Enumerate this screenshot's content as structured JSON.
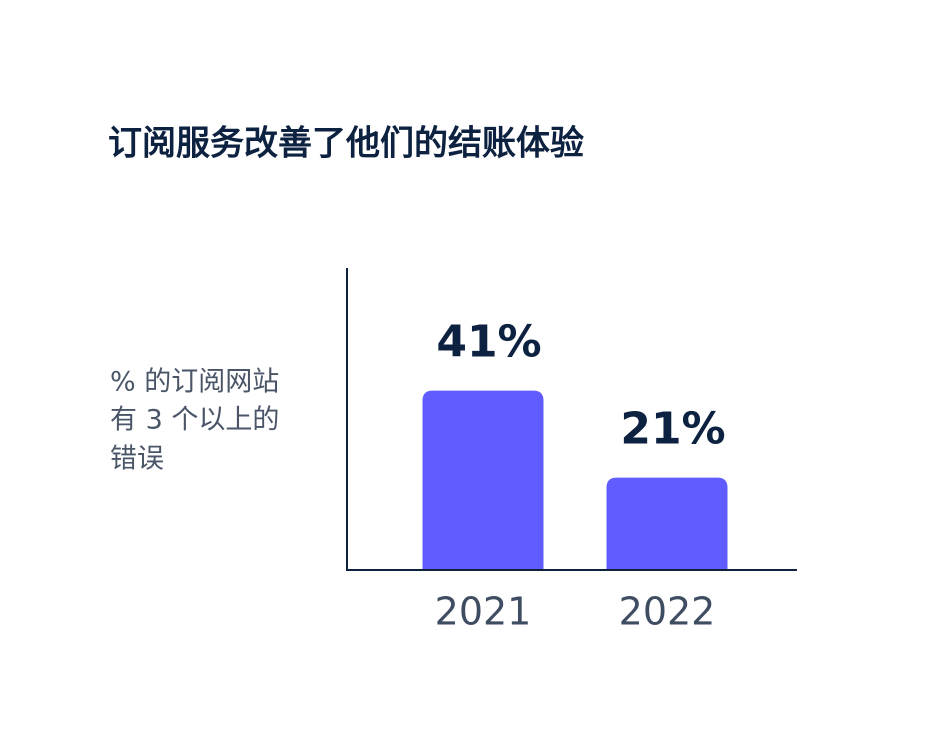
{
  "chart_data": {
    "type": "bar",
    "title": "订阅服务改善了他们的结账体验",
    "ylabel": [
      "% 的订阅网站",
      "有 3 个以上的",
      "错误"
    ],
    "categories": [
      "2021",
      "2022"
    ],
    "values": [
      41,
      21
    ],
    "value_labels": [
      "41%",
      "21%"
    ],
    "color": "#615cff"
  }
}
